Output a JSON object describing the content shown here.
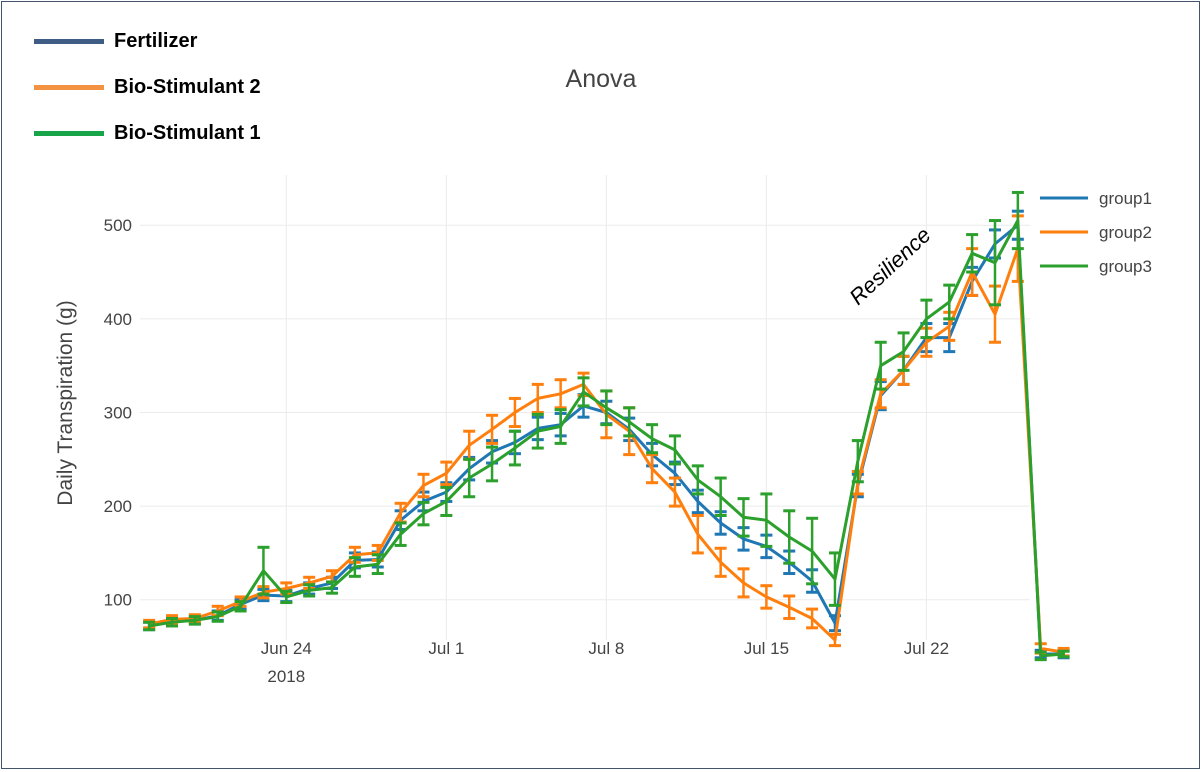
{
  "custom_legend": [
    {
      "label": "Fertilizer",
      "color": "#3f5d84"
    },
    {
      "label": "Bio-Stimulant 2",
      "color": "#f39240"
    },
    {
      "label": "Bio-Stimulant 1",
      "color": "#18a54a"
    }
  ],
  "chart_data": {
    "type": "line",
    "title": "Anova",
    "xlabel": "",
    "ylabel": "Daily Transpiration (g)",
    "x_start": "2018-06-18",
    "x_ticks": [
      {
        "label": "Jun 24",
        "sub": "2018",
        "day": 6
      },
      {
        "label": "Jul 1",
        "sub": "",
        "day": 13
      },
      {
        "label": "Jul 8",
        "sub": "",
        "day": 20
      },
      {
        "label": "Jul 15",
        "sub": "",
        "day": 27
      },
      {
        "label": "Jul 22",
        "sub": "",
        "day": 34
      }
    ],
    "y_ticks": [
      100,
      200,
      300,
      400,
      500
    ],
    "xlim": [
      -0.4,
      40.5
    ],
    "ylim": [
      57,
      575
    ],
    "grid": true,
    "legend_position": "top-right",
    "annotation": "Resilience",
    "x": [
      0,
      1,
      2,
      3,
      4,
      5,
      6,
      7,
      8,
      9,
      10,
      11,
      12,
      13,
      14,
      15,
      16,
      17,
      18,
      19,
      20,
      21,
      22,
      23,
      24,
      25,
      26,
      27,
      28,
      29,
      30,
      31,
      32,
      33,
      34,
      35,
      36,
      37,
      38,
      39,
      40
    ],
    "series": [
      {
        "name": "group1",
        "color": "#1f77b4",
        "values": [
          72,
          77,
          78,
          83,
          95,
          105,
          104,
          112,
          118,
          142,
          143,
          185,
          205,
          215,
          240,
          258,
          268,
          283,
          287,
          307,
          300,
          282,
          255,
          235,
          205,
          182,
          165,
          157,
          140,
          120,
          75,
          222,
          318,
          345,
          380,
          380,
          440,
          480,
          500,
          42,
          42
        ],
        "errors": [
          4,
          4,
          4,
          5,
          5,
          6,
          6,
          6,
          6,
          8,
          8,
          10,
          10,
          10,
          12,
          12,
          12,
          12,
          12,
          12,
          12,
          12,
          12,
          12,
          12,
          12,
          12,
          12,
          12,
          12,
          8,
          12,
          15,
          15,
          15,
          15,
          15,
          15,
          15,
          4,
          4
        ]
      },
      {
        "name": "group2",
        "color": "#ff7f0e",
        "values": [
          74,
          79,
          80,
          88,
          98,
          108,
          112,
          118,
          125,
          148,
          150,
          193,
          222,
          235,
          265,
          282,
          300,
          315,
          320,
          330,
          298,
          280,
          240,
          215,
          170,
          140,
          118,
          103,
          92,
          80,
          57,
          225,
          320,
          345,
          375,
          392,
          450,
          405,
          475,
          48,
          44
        ],
        "errors": [
          4,
          4,
          4,
          5,
          5,
          6,
          6,
          6,
          6,
          8,
          8,
          10,
          12,
          12,
          15,
          15,
          15,
          15,
          15,
          12,
          25,
          25,
          15,
          15,
          20,
          15,
          15,
          12,
          12,
          10,
          6,
          12,
          15,
          15,
          15,
          15,
          25,
          30,
          35,
          5,
          4
        ]
      },
      {
        "name": "group3",
        "color": "#2ca02c",
        "values": [
          72,
          76,
          78,
          82,
          93,
          131,
          103,
          110,
          113,
          135,
          138,
          170,
          192,
          205,
          230,
          245,
          262,
          280,
          285,
          322,
          305,
          290,
          272,
          260,
          228,
          210,
          188,
          185,
          167,
          152,
          122,
          248,
          350,
          365,
          400,
          418,
          470,
          460,
          505,
          40,
          42
        ],
        "errors": [
          4,
          4,
          4,
          5,
          5,
          25,
          6,
          6,
          6,
          10,
          10,
          12,
          12,
          15,
          20,
          18,
          18,
          18,
          18,
          15,
          18,
          15,
          15,
          15,
          15,
          20,
          20,
          28,
          28,
          35,
          28,
          22,
          25,
          20,
          20,
          18,
          20,
          45,
          30,
          4,
          3
        ]
      }
    ]
  }
}
